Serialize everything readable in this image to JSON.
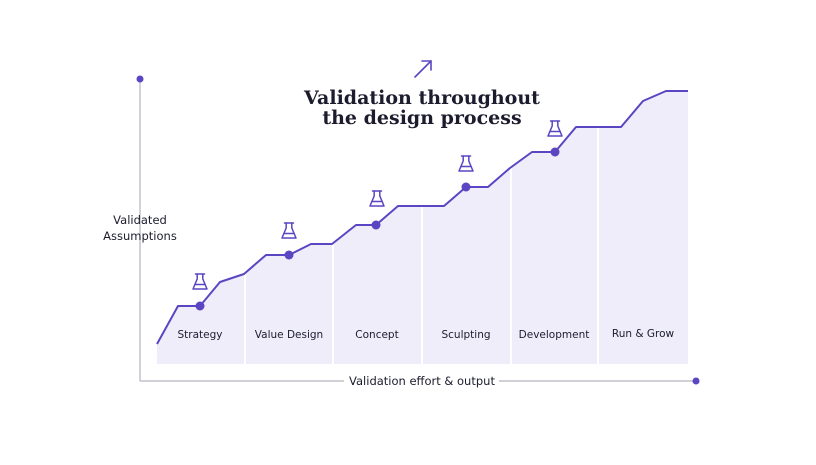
{
  "title": {
    "line1": "Validation throughout",
    "line2": "the design process"
  },
  "y_axis_label": {
    "line1": "Validated",
    "line2": "Assumptions"
  },
  "x_axis_label": "Validation effort & output",
  "stages": [
    {
      "label": "Strategy",
      "validation_icon": "flask-icon"
    },
    {
      "label": "Value Design",
      "validation_icon": "flask-icon"
    },
    {
      "label": "Concept",
      "validation_icon": "flask-icon"
    },
    {
      "label": "Sculpting",
      "validation_icon": "flask-icon"
    },
    {
      "label": "Development",
      "validation_icon": "flask-icon"
    },
    {
      "label": "Run & Grow",
      "validation_icon": ""
    }
  ],
  "colors": {
    "accent": "#5b45c2",
    "panel": "#efedfa",
    "axis": "#b5b5bd",
    "text": "#1c1c2e"
  }
}
